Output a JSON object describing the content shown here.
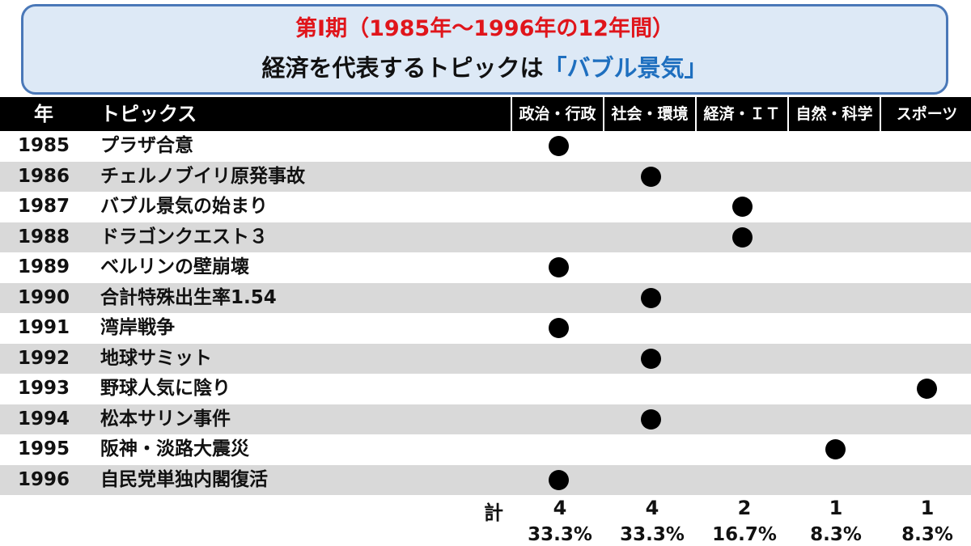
{
  "title": {
    "line1": "第Ⅰ期（1985年～1996年の12年間）",
    "line2_prefix": "経済を代表するトピックは",
    "line2_highlight": "「バブル景気」"
  },
  "header": {
    "year": "年",
    "topic": "トピックス",
    "categories": [
      "政治・行政",
      "社会・環境",
      "経済・ＩＴ",
      "自然・科学",
      "スポーツ"
    ]
  },
  "rows": [
    {
      "year": "1985",
      "topic": "プラザ合意",
      "category": 0
    },
    {
      "year": "1986",
      "topic": "チェルノブイリ原発事故",
      "category": 1
    },
    {
      "year": "1987",
      "topic": "バブル景気の始まり",
      "category": 2
    },
    {
      "year": "1988",
      "topic": "ドラゴンクエスト３",
      "category": 2
    },
    {
      "year": "1989",
      "topic": "ベルリンの壁崩壊",
      "category": 0
    },
    {
      "year": "1990",
      "topic": "合計特殊出生率1.54",
      "category": 1
    },
    {
      "year": "1991",
      "topic": "湾岸戦争",
      "category": 0
    },
    {
      "year": "1992",
      "topic": "地球サミット",
      "category": 1
    },
    {
      "year": "1993",
      "topic": "野球人気に陰り",
      "category": 4
    },
    {
      "year": "1994",
      "topic": "松本サリン事件",
      "category": 1
    },
    {
      "year": "1995",
      "topic": "阪神・淡路大震災",
      "category": 3
    },
    {
      "year": "1996",
      "topic": "自民党単独内閣復活",
      "category": 0
    }
  ],
  "totals": {
    "label": "計",
    "counts": [
      "4",
      "4",
      "2",
      "1",
      "1"
    ],
    "percents": [
      "33.3%",
      "33.3%",
      "16.7%",
      "8.3%",
      "8.3%"
    ]
  },
  "colors": {
    "title_red": "#e0151b",
    "highlight_blue": "#1e6fbf",
    "box_border": "#4a78b8",
    "box_fill": "#dde9f6",
    "header_bg": "#000000",
    "row_shade": "#d9d9d9"
  }
}
